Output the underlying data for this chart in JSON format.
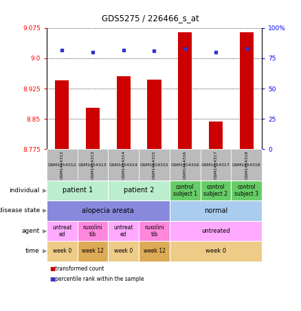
{
  "title": "GDS5275 / 226466_s_at",
  "samples": [
    "GSM1414312",
    "GSM1414313",
    "GSM1414314",
    "GSM1414315",
    "GSM1414316",
    "GSM1414317",
    "GSM1414318"
  ],
  "bar_values": [
    8.945,
    8.877,
    8.955,
    8.948,
    9.065,
    8.843,
    9.065
  ],
  "percentile_values": [
    82,
    80,
    82,
    81,
    83,
    80,
    83
  ],
  "ylim_left": [
    8.775,
    9.075
  ],
  "ylim_right": [
    0,
    100
  ],
  "yticks_left": [
    8.775,
    8.85,
    8.925,
    9.0,
    9.075
  ],
  "yticks_right": [
    0,
    25,
    50,
    75,
    100
  ],
  "bar_color": "#cc0000",
  "dot_color": "#3333cc",
  "bar_bottom": 8.775,
  "gsm_bg": "#bbbbbb",
  "rows": [
    {
      "label": "individual",
      "cells": [
        {
          "text": "patient 1",
          "span": 2,
          "bg": "#bbeecc",
          "fontsize": 7
        },
        {
          "text": "patient 2",
          "span": 2,
          "bg": "#bbeecc",
          "fontsize": 7
        },
        {
          "text": "control\nsubject 1",
          "span": 1,
          "bg": "#66cc66",
          "fontsize": 5.5
        },
        {
          "text": "control\nsubject 2",
          "span": 1,
          "bg": "#66cc66",
          "fontsize": 5.5
        },
        {
          "text": "control\nsubject 3",
          "span": 1,
          "bg": "#66cc66",
          "fontsize": 5.5
        }
      ]
    },
    {
      "label": "disease state",
      "cells": [
        {
          "text": "alopecia areata",
          "span": 4,
          "bg": "#8888dd",
          "fontsize": 7
        },
        {
          "text": "normal",
          "span": 3,
          "bg": "#aaccee",
          "fontsize": 7
        }
      ]
    },
    {
      "label": "agent",
      "cells": [
        {
          "text": "untreat\ned",
          "span": 1,
          "bg": "#ffaaff",
          "fontsize": 5.5
        },
        {
          "text": "ruxolini\ntib",
          "span": 1,
          "bg": "#ff88dd",
          "fontsize": 5.5
        },
        {
          "text": "untreat\ned",
          "span": 1,
          "bg": "#ffaaff",
          "fontsize": 5.5
        },
        {
          "text": "ruxolini\ntib",
          "span": 1,
          "bg": "#ff88dd",
          "fontsize": 5.5
        },
        {
          "text": "untreated",
          "span": 3,
          "bg": "#ffaaff",
          "fontsize": 6
        }
      ]
    },
    {
      "label": "time",
      "cells": [
        {
          "text": "week 0",
          "span": 1,
          "bg": "#eecc88",
          "fontsize": 5.5
        },
        {
          "text": "week 12",
          "span": 1,
          "bg": "#ddaa55",
          "fontsize": 5.5
        },
        {
          "text": "week 0",
          "span": 1,
          "bg": "#eecc88",
          "fontsize": 5.5
        },
        {
          "text": "week 12",
          "span": 1,
          "bg": "#ddaa55",
          "fontsize": 5.5
        },
        {
          "text": "week 0",
          "span": 3,
          "bg": "#eecc88",
          "fontsize": 6
        }
      ]
    }
  ]
}
